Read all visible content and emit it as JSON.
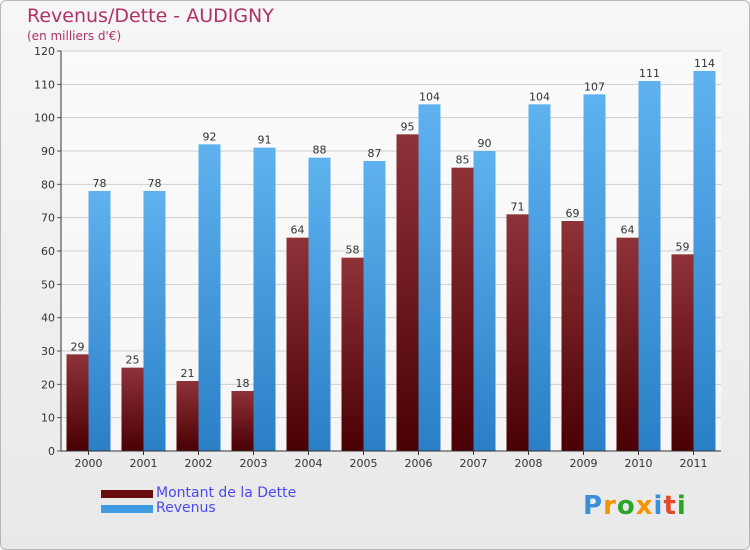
{
  "header": {
    "title": "Revenus/Dette - AUDIGNY",
    "subtitle": "(en milliers d'€)"
  },
  "logo": {
    "text": "Proxiti",
    "letters": [
      "P",
      "r",
      "o",
      "x",
      "i",
      "t",
      "i"
    ],
    "colors": [
      "#3b8fd6",
      "#f29400",
      "#2aa52a",
      "#f29400",
      "#3b8fd6",
      "#e04a2a",
      "#2aa52a"
    ]
  },
  "legend": {
    "items": [
      {
        "label": "Montant de la Dette",
        "color": "#6b0e12"
      },
      {
        "label": "Revenus",
        "color": "#3f9be0"
      }
    ]
  },
  "chart_data": {
    "type": "bar",
    "title": "Revenus/Dette - AUDIGNY",
    "subtitle": "(en milliers d'€)",
    "xlabel": "",
    "ylabel": "",
    "categories": [
      "2000",
      "2001",
      "2002",
      "2003",
      "2004",
      "2005",
      "2006",
      "2007",
      "2008",
      "2009",
      "2010",
      "2011"
    ],
    "series": [
      {
        "name": "Montant de la Dette",
        "color": "#6b0e12",
        "values": [
          29,
          25,
          21,
          18,
          64,
          58,
          95,
          85,
          71,
          69,
          64,
          59
        ]
      },
      {
        "name": "Revenus",
        "color": "#3f9be0",
        "values": [
          78,
          78,
          92,
          91,
          88,
          87,
          104,
          90,
          104,
          107,
          111,
          114
        ]
      }
    ],
    "ylim": [
      0,
      120
    ],
    "yticks": [
      0,
      10,
      20,
      30,
      40,
      50,
      60,
      70,
      80,
      90,
      100,
      110,
      120
    ],
    "grid": true,
    "legend_position": "bottom-left",
    "data_labels": true
  }
}
